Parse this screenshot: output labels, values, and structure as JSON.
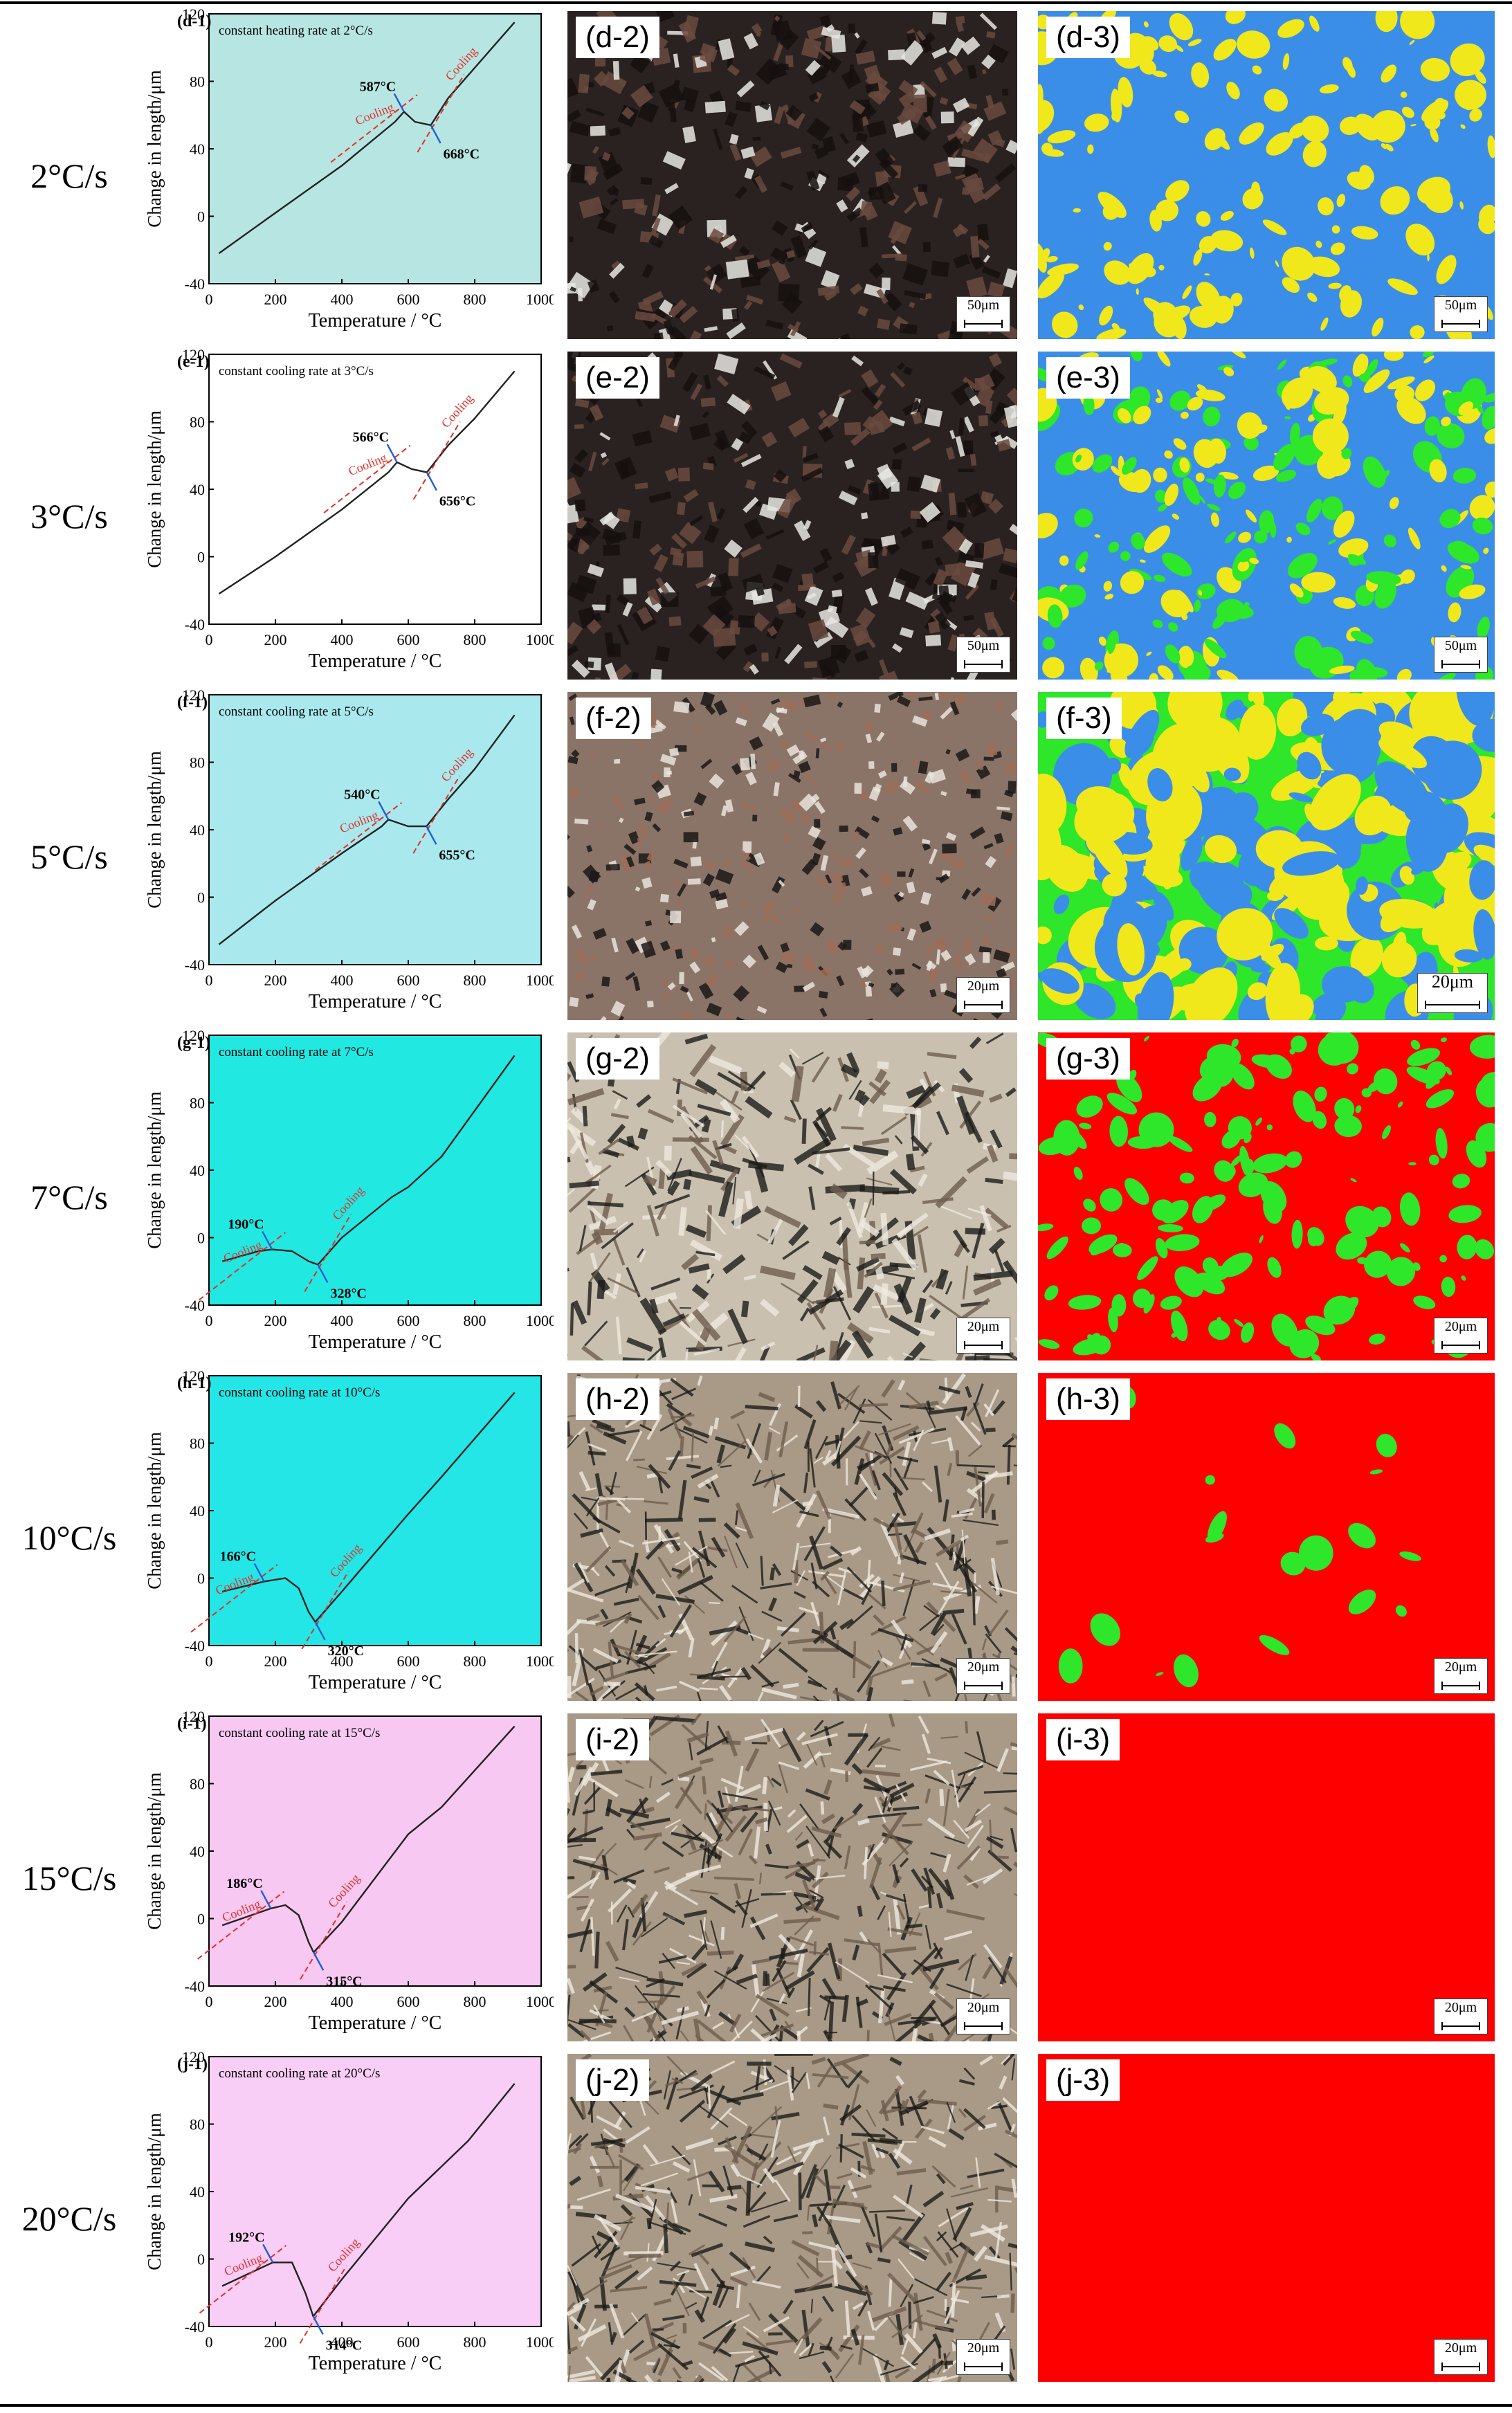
{
  "figure": {
    "rows": [
      {
        "rate": "2°C/s",
        "plot_label": "(d-1)",
        "plot_note": "constant heating rate at 2°C/s",
        "mid_label": "(d-2)",
        "right_label": "(d-3)",
        "scale": "50μm",
        "bg": "#b7e6e2",
        "mid_tone": "dark",
        "map_base": "#3b8ee8",
        "map_phases": [
          "#f0e81a"
        ],
        "points": [
          {
            "text": "587°C",
            "T": 587
          },
          {
            "text": "668°C",
            "T": 668
          }
        ]
      },
      {
        "rate": "3°C/s",
        "plot_label": "(e-1)",
        "plot_note": "constant cooling rate at 3°C/s",
        "mid_label": "(e-2)",
        "right_label": "(e-3)",
        "scale": "50μm",
        "bg": "#ffffff",
        "mid_tone": "dark",
        "map_base": "#3b8ee8",
        "map_phases": [
          "#2ee62a",
          "#f0e81a"
        ],
        "points": [
          {
            "text": "566°C",
            "T": 566
          },
          {
            "text": "656°C",
            "T": 656
          }
        ]
      },
      {
        "rate": "5°C/s",
        "plot_label": "(f-1)",
        "plot_note": "constant cooling rate at 5°C/s",
        "mid_label": "(f-2)",
        "right_label": "(f-3)",
        "scale": "20μm",
        "bg": "#a9e9ee",
        "mid_tone": "mixed",
        "map_base": "#2ee62a",
        "map_phases": [
          "#3b8ee8",
          "#f0e81a"
        ],
        "points": [
          {
            "text": "540°C",
            "T": 540
          },
          {
            "text": "655°C",
            "T": 655
          }
        ]
      },
      {
        "rate": "7°C/s",
        "plot_label": "(g-1)",
        "plot_note": "constant cooling rate at 7°C/s",
        "mid_label": "(g-2)",
        "right_label": "(g-3)",
        "scale": "20μm",
        "bg": "#22e8e2",
        "mid_tone": "light",
        "map_base": "#ff0000",
        "map_phases": [
          "#2ee62a"
        ],
        "points": [
          {
            "text": "190°C",
            "T": 190
          },
          {
            "text": "328°C",
            "T": 328
          }
        ]
      },
      {
        "rate": "10°C/s",
        "plot_label": "(h-1)",
        "plot_note": "constant cooling rate at 10°C/s",
        "mid_label": "(h-2)",
        "right_label": "(h-3)",
        "scale": "20μm",
        "bg": "#24e6e6",
        "mid_tone": "needle",
        "map_base": "#ff0000",
        "map_phases": [
          "#2ee62a"
        ],
        "points": [
          {
            "text": "166°C",
            "T": 166
          },
          {
            "text": "320°C",
            "T": 320
          }
        ]
      },
      {
        "rate": "15°C/s",
        "plot_label": "(i-1)",
        "plot_note": "constant cooling rate at 15°C/s",
        "mid_label": "(i-2)",
        "right_label": "(i-3)",
        "scale": "20μm",
        "bg": "#f6c8f2",
        "mid_tone": "needle",
        "map_base": "#ff0000",
        "map_phases": [],
        "points": [
          {
            "text": "186°C",
            "T": 186
          },
          {
            "text": "315°C",
            "T": 315
          }
        ]
      },
      {
        "rate": "20°C/s",
        "plot_label": "(j-1)",
        "plot_note": "constant cooling rate at 20°C/s",
        "mid_label": "(j-2)",
        "right_label": "(j-3)",
        "scale": "20μm",
        "bg": "#f8cdf6",
        "mid_tone": "needle",
        "map_base": "#ff0000",
        "map_phases": [],
        "points": [
          {
            "text": "192°C",
            "T": 192
          },
          {
            "text": "314°C",
            "T": 314
          }
        ]
      }
    ],
    "axes": {
      "xlabel": "Temperature / °C",
      "ylabel": "Change in length/μm",
      "xticks": [
        "0",
        "200",
        "400",
        "600",
        "800",
        "1000"
      ],
      "yticks": [
        "-40",
        "0",
        "40",
        "80",
        "120"
      ],
      "cooling_label": "Cooling",
      "xlim": [
        0,
        1000
      ],
      "ylim": [
        -40,
        120
      ]
    }
  },
  "chart_data": [
    {
      "type": "line",
      "title": "constant heating rate at 2°C/s",
      "xlabel": "Temperature / °C",
      "ylabel": "Change in length/μm",
      "xlim": [
        0,
        1000
      ],
      "ylim": [
        -40,
        120
      ],
      "series": [
        {
          "x": [
            30,
            200,
            400,
            560,
            587,
            620,
            668,
            720,
            800,
            920
          ],
          "y": [
            -22,
            2,
            30,
            56,
            62,
            56,
            54,
            70,
            88,
            115
          ]
        }
      ],
      "annotations": [
        "587°C",
        "668°C",
        "Cooling",
        "Cooling"
      ]
    },
    {
      "type": "line",
      "title": "constant cooling rate at 3°C/s",
      "xlabel": "Temperature / °C",
      "ylabel": "Change in length/μm",
      "xlim": [
        0,
        1000
      ],
      "ylim": [
        -40,
        120
      ],
      "series": [
        {
          "x": [
            30,
            200,
            400,
            540,
            566,
            610,
            656,
            720,
            800,
            920
          ],
          "y": [
            -22,
            0,
            28,
            50,
            56,
            52,
            50,
            66,
            82,
            110
          ]
        }
      ],
      "annotations": [
        "566°C",
        "656°C",
        "Cooling",
        "Cooling"
      ]
    },
    {
      "type": "line",
      "title": "constant cooling rate at 5°C/s",
      "xlabel": "Temperature / °C",
      "ylabel": "Change in length/μm",
      "xlim": [
        0,
        1000
      ],
      "ylim": [
        -40,
        120
      ],
      "series": [
        {
          "x": [
            30,
            200,
            400,
            520,
            540,
            600,
            655,
            720,
            800,
            920
          ],
          "y": [
            -28,
            -2,
            26,
            42,
            46,
            42,
            42,
            58,
            76,
            108
          ]
        }
      ],
      "annotations": [
        "540°C",
        "655°C",
        "Cooling",
        "Cooling"
      ]
    },
    {
      "type": "line",
      "title": "constant cooling rate at 7°C/s",
      "xlabel": "Temperature / °C",
      "ylabel": "Change in length/μm",
      "xlim": [
        0,
        1000
      ],
      "ylim": [
        -40,
        120
      ],
      "series": [
        {
          "x": [
            40,
            150,
            190,
            250,
            300,
            328,
            400,
            550,
            600,
            700,
            920
          ],
          "y": [
            -14,
            -8,
            -7,
            -8,
            -14,
            -16,
            0,
            24,
            30,
            48,
            108
          ]
        }
      ],
      "annotations": [
        "190°C",
        "328°C",
        "Cooling",
        "Cooling"
      ]
    },
    {
      "type": "line",
      "title": "constant cooling rate at 10°C/s",
      "xlabel": "Temperature / °C",
      "ylabel": "Change in length/μm",
      "xlim": [
        0,
        1000
      ],
      "ylim": [
        -40,
        120
      ],
      "series": [
        {
          "x": [
            40,
            166,
            230,
            270,
            300,
            320,
            400,
            600,
            700,
            920
          ],
          "y": [
            -8,
            -2,
            0,
            -6,
            -20,
            -26,
            -8,
            38,
            60,
            110
          ]
        }
      ],
      "annotations": [
        "166°C",
        "320°C",
        "Cooling",
        "Cooling"
      ]
    },
    {
      "type": "line",
      "title": "constant cooling rate at 15°C/s",
      "xlabel": "Temperature / °C",
      "ylabel": "Change in length/μm",
      "xlim": [
        0,
        1000
      ],
      "ylim": [
        -40,
        120
      ],
      "series": [
        {
          "x": [
            40,
            186,
            230,
            270,
            300,
            315,
            400,
            600,
            700,
            920
          ],
          "y": [
            -4,
            6,
            8,
            2,
            -14,
            -20,
            -2,
            50,
            66,
            114
          ]
        }
      ],
      "annotations": [
        "186°C",
        "315°C",
        "Cooling",
        "Cooling"
      ]
    },
    {
      "type": "line",
      "title": "constant cooling rate at 20°C/s",
      "xlabel": "Temperature / °C",
      "ylabel": "Change in length/μm",
      "xlim": [
        0,
        1000
      ],
      "ylim": [
        -40,
        120
      ],
      "series": [
        {
          "x": [
            40,
            192,
            250,
            290,
            314,
            400,
            600,
            780,
            920
          ],
          "y": [
            -16,
            -2,
            -2,
            -20,
            -34,
            -12,
            36,
            70,
            104
          ]
        }
      ],
      "annotations": [
        "192°C",
        "314°C",
        "Cooling",
        "Cooling"
      ]
    }
  ]
}
